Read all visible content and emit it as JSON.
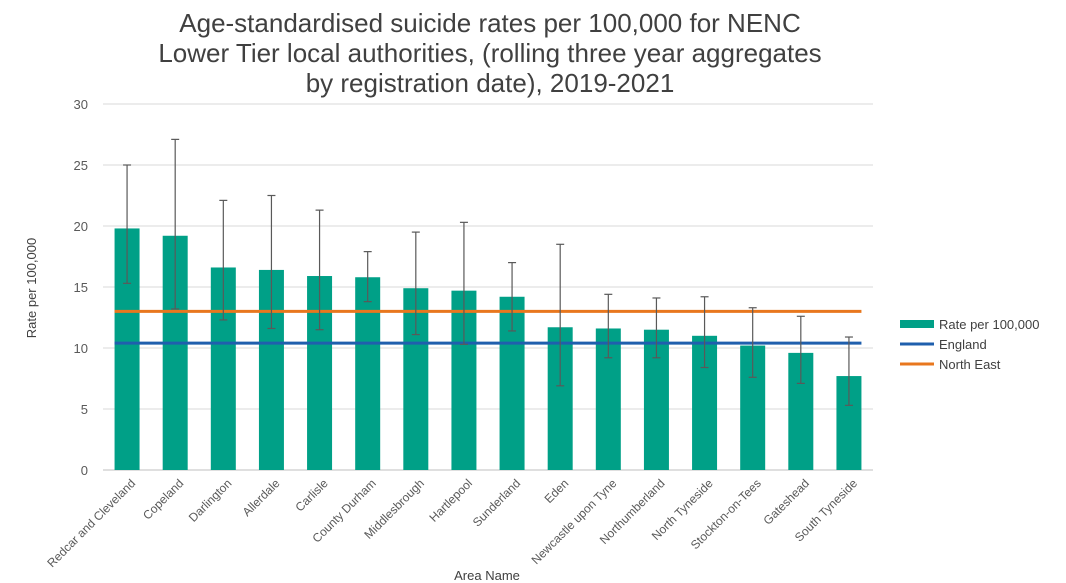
{
  "chart_data": {
    "type": "bar",
    "title_lines": [
      "Age-standardised suicide rates per 100,000 for NENC",
      "Lower Tier local authorities, (rolling three year aggregates",
      "by registration date), 2019-2021"
    ],
    "xlabel": "Area Name",
    "ylabel": "Rate per 100,000",
    "ylim": [
      0,
      30
    ],
    "yticks": [
      0,
      5,
      10,
      15,
      20,
      25,
      30
    ],
    "grid": true,
    "legend_position": "right",
    "categories": [
      "Redcar and Cleveland",
      "Copeland",
      "Darlington",
      "Allerdale",
      "Carlisle",
      "County Durham",
      "Middlesbrough",
      "Hartlepool",
      "Sunderland",
      "Eden",
      "Newcastle upon Tyne",
      "Northumberland",
      "North Tyneside",
      "Stockton-on-Tees",
      "Gateshead",
      "South Tyneside"
    ],
    "series": [
      {
        "name": "Rate per 100,000",
        "kind": "bar",
        "color": "#00a087",
        "values": [
          19.8,
          19.2,
          16.6,
          16.4,
          15.9,
          15.8,
          14.9,
          14.7,
          14.2,
          11.7,
          11.6,
          11.5,
          11.0,
          10.2,
          9.6,
          7.7
        ],
        "error_lower": [
          15.3,
          13.2,
          12.3,
          11.6,
          11.5,
          13.8,
          11.1,
          10.3,
          11.4,
          6.9,
          9.2,
          9.2,
          8.4,
          7.6,
          7.1,
          5.3
        ],
        "error_upper": [
          25.0,
          27.1,
          22.1,
          22.5,
          21.3,
          17.9,
          19.5,
          20.3,
          17.0,
          18.5,
          14.4,
          14.1,
          14.2,
          13.3,
          12.6,
          10.9
        ]
      },
      {
        "name": "England",
        "kind": "line",
        "color": "#1f5fad",
        "value": 10.4
      },
      {
        "name": "North East",
        "kind": "line",
        "color": "#e8771e",
        "value": 13.0
      }
    ]
  }
}
